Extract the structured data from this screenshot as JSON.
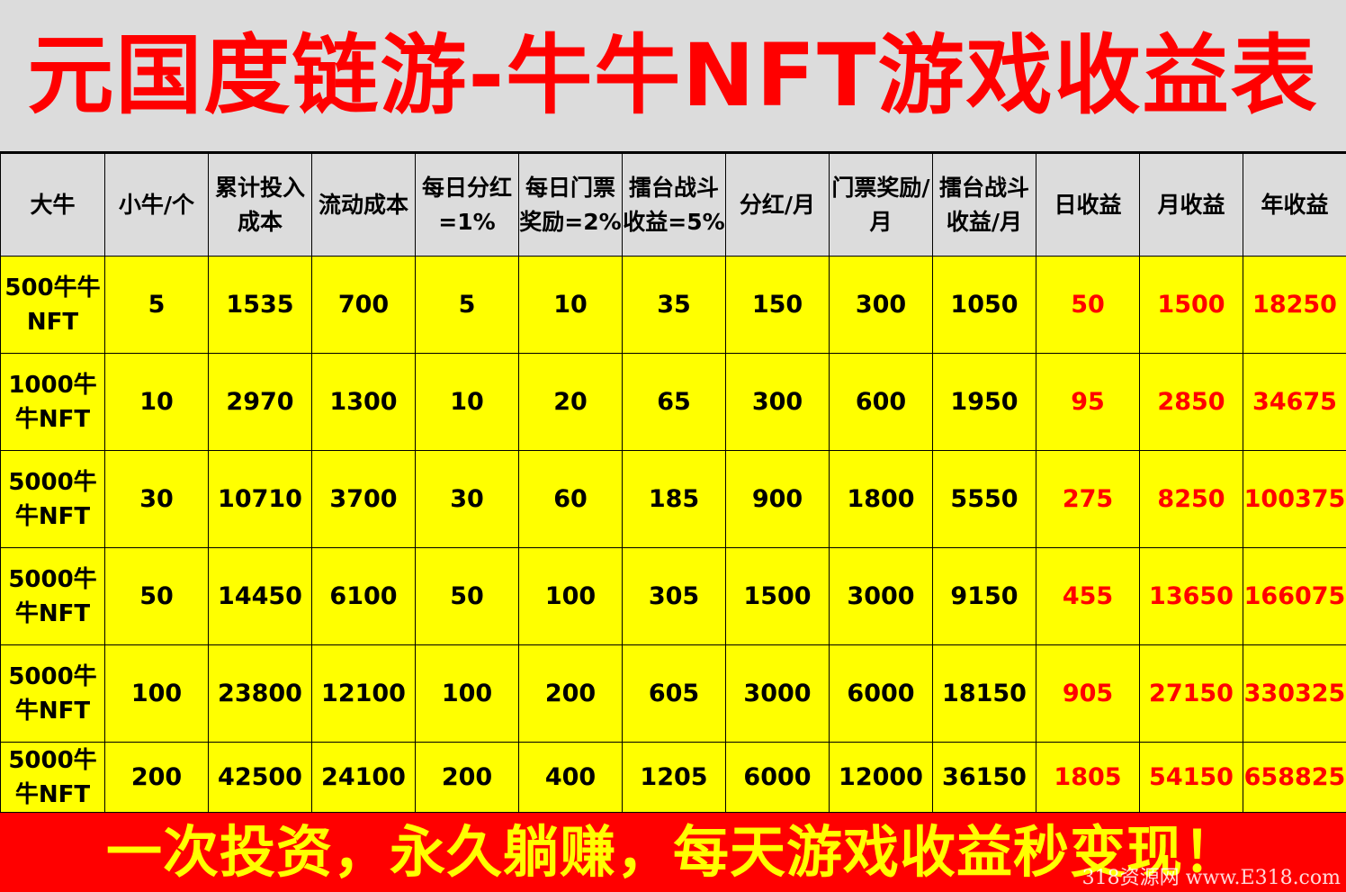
{
  "title": "元国度链游-牛牛NFT游戏收益表",
  "colors": {
    "title_bg": "#dcdcdc",
    "title_text": "#ff0000",
    "header_bg": "#dcdcdc",
    "cell_bg": "#ffff00",
    "earnings_text": "#ff0000",
    "footer_bg": "#ff0000",
    "footer_text": "#ffff00"
  },
  "table": {
    "headers": [
      "大牛",
      "小牛/个",
      "累计投入成本",
      "流动成本",
      "每日分红=1%",
      "每日门票奖励=2%",
      "擂台战斗收益=5%",
      "分红/月",
      "门票奖励/月",
      "擂台战斗收益/月",
      "日收益",
      "月收益",
      "年收益"
    ],
    "rows": [
      [
        "500牛牛NFT",
        "5",
        "1535",
        "700",
        "5",
        "10",
        "35",
        "150",
        "300",
        "1050",
        "50",
        "1500",
        "18250"
      ],
      [
        "1000牛牛NFT",
        "10",
        "2970",
        "1300",
        "10",
        "20",
        "65",
        "300",
        "600",
        "1950",
        "95",
        "2850",
        "34675"
      ],
      [
        "5000牛牛NFT",
        "30",
        "10710",
        "3700",
        "30",
        "60",
        "185",
        "900",
        "1800",
        "5550",
        "275",
        "8250",
        "100375"
      ],
      [
        "5000牛牛NFT",
        "50",
        "14450",
        "6100",
        "50",
        "100",
        "305",
        "1500",
        "3000",
        "9150",
        "455",
        "13650",
        "166075"
      ],
      [
        "5000牛牛NFT",
        "100",
        "23800",
        "12100",
        "100",
        "200",
        "605",
        "3000",
        "6000",
        "18150",
        "905",
        "27150",
        "330325"
      ],
      [
        "5000牛牛NFT",
        "200",
        "42500",
        "24100",
        "200",
        "400",
        "1205",
        "6000",
        "12000",
        "36150",
        "1805",
        "54150",
        "658825"
      ]
    ]
  },
  "footer": "一次投资，永久躺赚，每天游戏收益秒变现！",
  "watermark": "318资源网 www.E318.com"
}
